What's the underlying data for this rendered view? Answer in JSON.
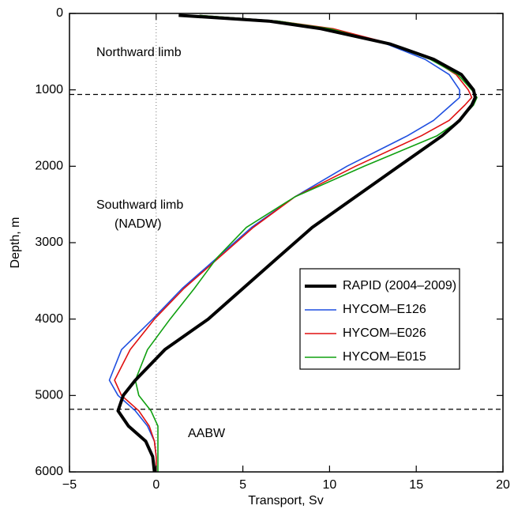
{
  "chart_data": {
    "type": "line",
    "xlabel": "Transport, Sv",
    "ylabel": "Depth, m",
    "xlim": [
      -5,
      20
    ],
    "ylim": [
      0,
      6000
    ],
    "y_inverted": true,
    "xticks": [
      {
        "value": -5,
        "label": "−5"
      },
      0,
      5,
      10,
      15,
      20
    ],
    "yticks": [
      0,
      1000,
      2000,
      3000,
      4000,
      5000,
      6000
    ],
    "y": [
      25,
      100,
      200,
      400,
      600,
      800,
      1000,
      1100,
      1200,
      1400,
      1600,
      2000,
      2400,
      2800,
      3200,
      3600,
      4000,
      4400,
      4800,
      5000,
      5200,
      5400,
      5600,
      5800,
      6000
    ],
    "hlines": [
      1060,
      5180
    ],
    "vline": 0,
    "legend": "lower right",
    "annotations": [
      "Northward limb",
      "Southward limb",
      "(NADW)",
      "AABW"
    ],
    "series": [
      {
        "name": "RAPID (2004–2009)",
        "color": "#000000",
        "width": 4,
        "values": [
          1.3,
          6.5,
          9.5,
          13.5,
          16.0,
          17.6,
          18.3,
          18.4,
          18.2,
          17.5,
          16.5,
          14.0,
          11.5,
          9.0,
          7.0,
          5.0,
          3.0,
          0.5,
          -1.2,
          -1.9,
          -2.2,
          -1.6,
          -0.6,
          -0.2,
          -0.1
        ]
      },
      {
        "name": "HYCOM–E126",
        "color": "#1f4fe0",
        "width": 1.6,
        "values": [
          2.5,
          7.0,
          10.0,
          13.3,
          15.5,
          16.9,
          17.5,
          17.5,
          17.0,
          16.0,
          14.5,
          11.0,
          8.0,
          5.5,
          3.5,
          1.5,
          -0.2,
          -2.0,
          -2.7,
          -2.2,
          -1.2,
          -0.5,
          -0.1,
          0,
          0
        ]
      },
      {
        "name": "HYCOM–E026",
        "color": "#e01010",
        "width": 1.6,
        "values": [
          2.5,
          7.0,
          10.2,
          13.6,
          15.9,
          17.3,
          18.0,
          18.2,
          17.8,
          16.9,
          15.3,
          11.5,
          8.0,
          5.6,
          3.6,
          1.6,
          -0.1,
          -1.5,
          -2.4,
          -2.0,
          -1.0,
          -0.4,
          -0.1,
          0,
          0
        ]
      },
      {
        "name": "HYCOM–E015",
        "color": "#10a010",
        "width": 1.6,
        "values": [
          2.5,
          7.0,
          10.0,
          13.4,
          15.8,
          17.4,
          18.2,
          18.5,
          18.3,
          17.5,
          16.2,
          12.0,
          8.0,
          5.2,
          3.5,
          2.2,
          0.8,
          -0.5,
          -1.2,
          -1.0,
          -0.3,
          0.1,
          0.1,
          0.1,
          0.1
        ]
      }
    ]
  }
}
